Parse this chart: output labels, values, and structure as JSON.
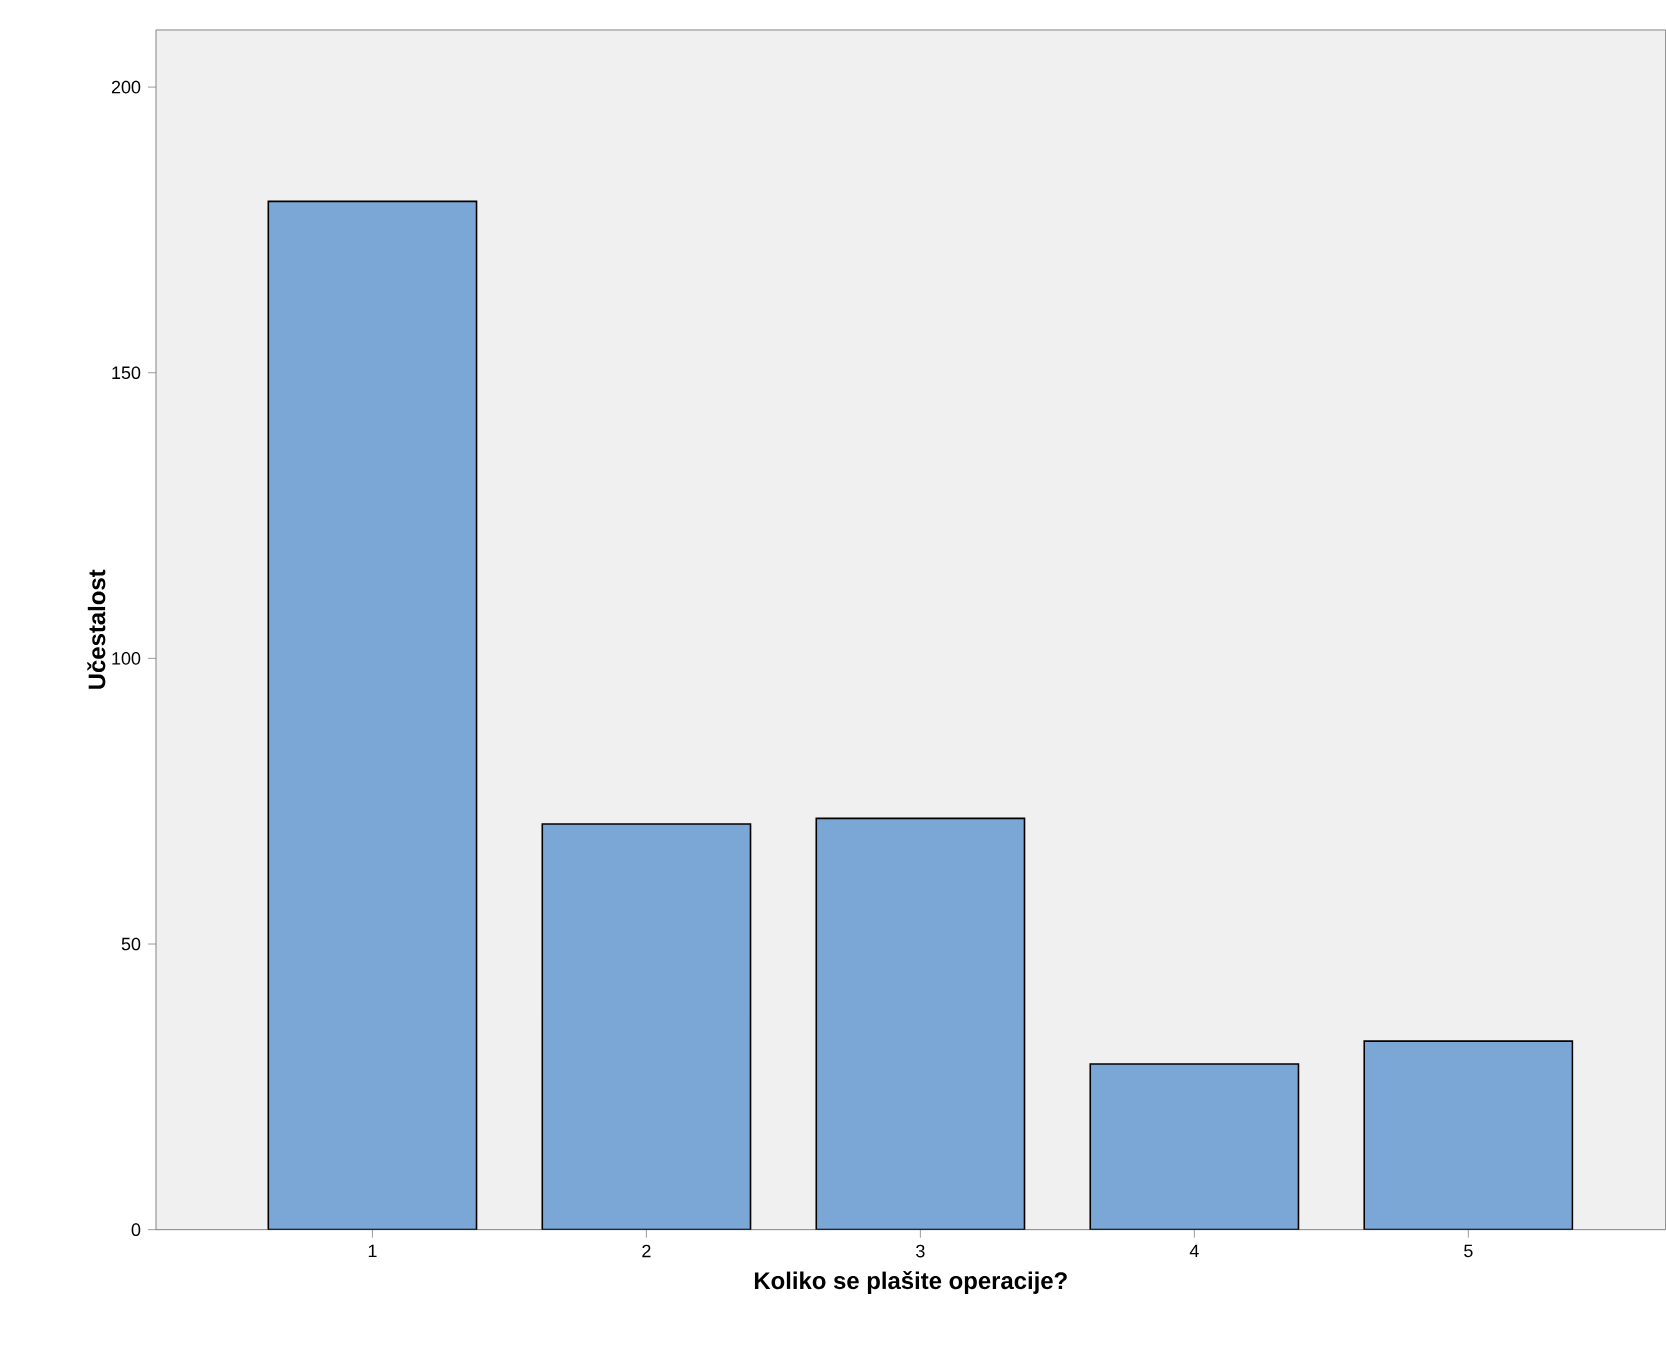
{
  "chart_data": {
    "type": "bar",
    "xlabel": "Koliko se plašite operacije?",
    "ylabel": "Učestalost",
    "categories": [
      "1",
      "2",
      "3",
      "4",
      "5"
    ],
    "values": [
      180,
      71,
      72,
      29,
      33
    ],
    "color": "#7aa7d6",
    "ylim": [
      0,
      210
    ],
    "yticks": [
      0,
      50,
      100,
      150,
      200
    ],
    "grid": false
  }
}
